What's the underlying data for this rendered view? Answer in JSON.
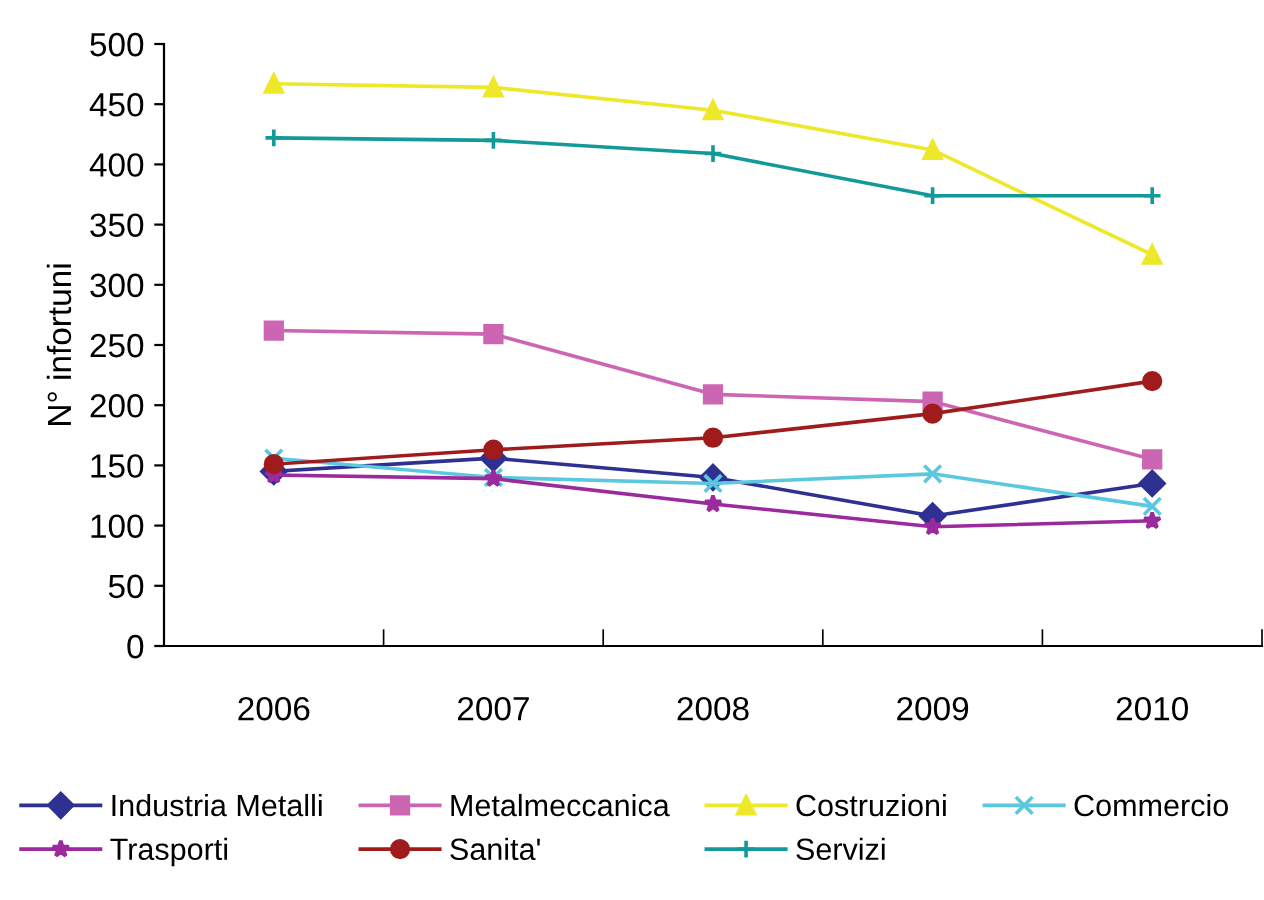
{
  "chart_data": {
    "type": "line",
    "ylabel": "N° infortuni",
    "categories": [
      "2006",
      "2007",
      "2008",
      "2009",
      "2010"
    ],
    "series": [
      {
        "name": "Industria Metalli",
        "color": "#2e3192",
        "marker": "diamond",
        "values": [
          145,
          156,
          140,
          108,
          135
        ]
      },
      {
        "name": "Metalmeccanica",
        "color": "#cc66b3",
        "marker": "square",
        "values": [
          262,
          259,
          209,
          203,
          155
        ]
      },
      {
        "name": "Costruzioni",
        "color": "#eee82a",
        "marker": "triangle",
        "values": [
          467,
          464,
          445,
          412,
          325
        ]
      },
      {
        "name": "Commercio",
        "color": "#5bc8e0",
        "marker": "x",
        "values": [
          156,
          140,
          135,
          143,
          116
        ]
      },
      {
        "name": "Trasporti",
        "color": "#9b2a9e",
        "marker": "star",
        "values": [
          142,
          139,
          118,
          99,
          104
        ]
      },
      {
        "name": "Sanita'",
        "color": "#a01c1c",
        "marker": "circle",
        "values": [
          151,
          163,
          173,
          193,
          220
        ]
      },
      {
        "name": "Servizi",
        "color": "#139a98",
        "marker": "cross",
        "values": [
          422,
          420,
          409,
          374,
          374
        ]
      }
    ],
    "ylim": [
      0,
      500
    ],
    "yticks": [
      0,
      50,
      100,
      150,
      200,
      250,
      300,
      350,
      400,
      450,
      500
    ],
    "grid": false,
    "legend": "bottom",
    "line_style": "solid"
  }
}
